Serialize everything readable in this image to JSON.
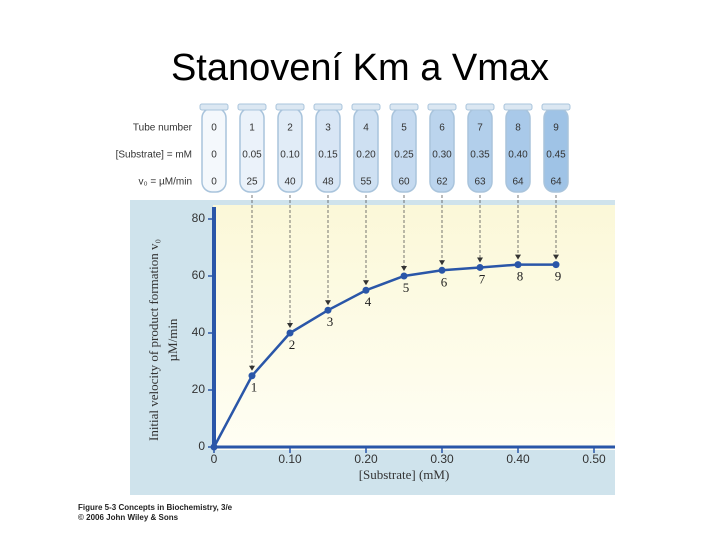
{
  "title": "Stanovení Km a Vmax",
  "tubes": {
    "row_labels": [
      "Tube number",
      "[Substrate] = mM",
      "v₀ = µM/min"
    ],
    "tube_number": [
      "0",
      "1",
      "2",
      "3",
      "4",
      "5",
      "6",
      "7",
      "8",
      "9"
    ],
    "substrate": [
      "0",
      "0.05",
      "0.10",
      "0.15",
      "0.20",
      "0.25",
      "0.30",
      "0.35",
      "0.40",
      "0.45"
    ],
    "v0": [
      "0",
      "25",
      "40",
      "48",
      "55",
      "60",
      "62",
      "63",
      "64",
      "64"
    ]
  },
  "chart_data": {
    "type": "line",
    "x_label": "[Substrate] (mM)",
    "y_label": [
      "Initial velocity of product formation v₀",
      "µM/min"
    ],
    "x": [
      0,
      0.05,
      0.1,
      0.15,
      0.2,
      0.25,
      0.3,
      0.35,
      0.4,
      0.45
    ],
    "values": [
      0,
      25,
      40,
      48,
      55,
      60,
      62,
      63,
      64,
      64
    ],
    "point_labels": [
      null,
      "1",
      "2",
      "3",
      "4",
      "5",
      "6",
      "7",
      "8",
      "9"
    ],
    "color": "#2a56a8",
    "xlim": [
      0,
      0.5
    ],
    "xticks": [
      0,
      {
        "value": 0.1,
        "label": "0.10"
      },
      {
        "value": 0.2,
        "label": "0.20"
      },
      {
        "value": 0.3,
        "label": "0.30"
      },
      {
        "value": 0.4,
        "label": "0.40"
      },
      {
        "value": 0.5,
        "label": "0.50"
      }
    ],
    "ylim": [
      0,
      80
    ],
    "yticks": [
      0,
      20,
      40,
      60,
      80
    ]
  },
  "caption": [
    "Figure 5-3 Concepts in Biochemistry, 3/e",
    "© 2006 John Wiley & Sons"
  ]
}
